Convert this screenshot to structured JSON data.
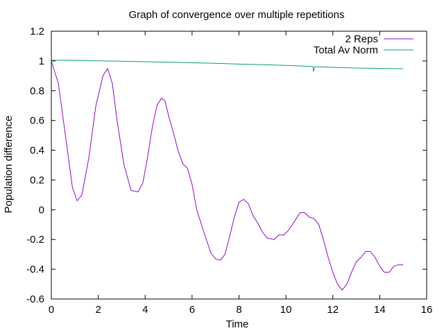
{
  "chart_data": {
    "type": "line",
    "title": "Graph of convergence over multiple repetitions",
    "xlabel": "Time",
    "ylabel": "Population difference",
    "xlim": [
      0,
      16
    ],
    "ylim": [
      -0.6,
      1.2
    ],
    "xticks": [
      0,
      2,
      4,
      6,
      8,
      10,
      12,
      14,
      16
    ],
    "yticks": [
      -0.6,
      -0.4,
      -0.2,
      0,
      0.2,
      0.4,
      0.6,
      0.8,
      1,
      1.2
    ],
    "legend_position": "top-right",
    "grid": false,
    "series": [
      {
        "name": "2 Reps",
        "color": "#9400d3",
        "x": [
          0,
          0.3,
          0.6,
          0.9,
          1.1,
          1.3,
          1.6,
          1.9,
          2.2,
          2.4,
          2.6,
          2.8,
          3.1,
          3.4,
          3.7,
          3.9,
          4.1,
          4.3,
          4.5,
          4.7,
          4.85,
          5.0,
          5.2,
          5.4,
          5.6,
          5.8,
          6.0,
          6.2,
          6.5,
          6.8,
          7.0,
          7.2,
          7.4,
          7.6,
          7.8,
          8.0,
          8.2,
          8.4,
          8.6,
          8.8,
          9.0,
          9.2,
          9.5,
          9.7,
          9.9,
          10.1,
          10.4,
          10.6,
          10.8,
          11.0,
          11.2,
          11.4,
          11.6,
          11.8,
          12.0,
          12.2,
          12.4,
          12.6,
          12.8,
          13.0,
          13.2,
          13.4,
          13.6,
          13.8,
          14.0,
          14.2,
          14.4,
          14.6,
          14.8,
          15.0
        ],
        "y": [
          1.0,
          0.85,
          0.5,
          0.15,
          0.06,
          0.1,
          0.35,
          0.7,
          0.9,
          0.95,
          0.85,
          0.6,
          0.3,
          0.13,
          0.12,
          0.18,
          0.35,
          0.55,
          0.7,
          0.75,
          0.73,
          0.63,
          0.52,
          0.4,
          0.31,
          0.28,
          0.17,
          0.0,
          -0.15,
          -0.29,
          -0.33,
          -0.34,
          -0.3,
          -0.18,
          -0.05,
          0.05,
          0.07,
          0.04,
          -0.04,
          -0.09,
          -0.15,
          -0.19,
          -0.2,
          -0.17,
          -0.17,
          -0.14,
          -0.07,
          -0.02,
          -0.02,
          -0.05,
          -0.06,
          -0.1,
          -0.2,
          -0.32,
          -0.42,
          -0.5,
          -0.54,
          -0.5,
          -0.42,
          -0.35,
          -0.32,
          -0.28,
          -0.28,
          -0.32,
          -0.38,
          -0.42,
          -0.42,
          -0.38,
          -0.37,
          -0.37
        ]
      },
      {
        "name": "Total Av Norm",
        "color": "#009e73",
        "x": [
          0,
          1,
          2,
          3,
          4,
          5,
          6,
          7,
          8,
          9,
          10,
          11,
          11.15,
          11.18,
          11.22,
          11.3,
          12,
          13,
          14,
          15
        ],
        "y": [
          1.005,
          1.004,
          1.001,
          0.998,
          0.995,
          0.992,
          0.988,
          0.984,
          0.979,
          0.975,
          0.97,
          0.964,
          0.962,
          0.93,
          0.961,
          0.961,
          0.957,
          0.953,
          0.95,
          0.948
        ]
      }
    ]
  }
}
